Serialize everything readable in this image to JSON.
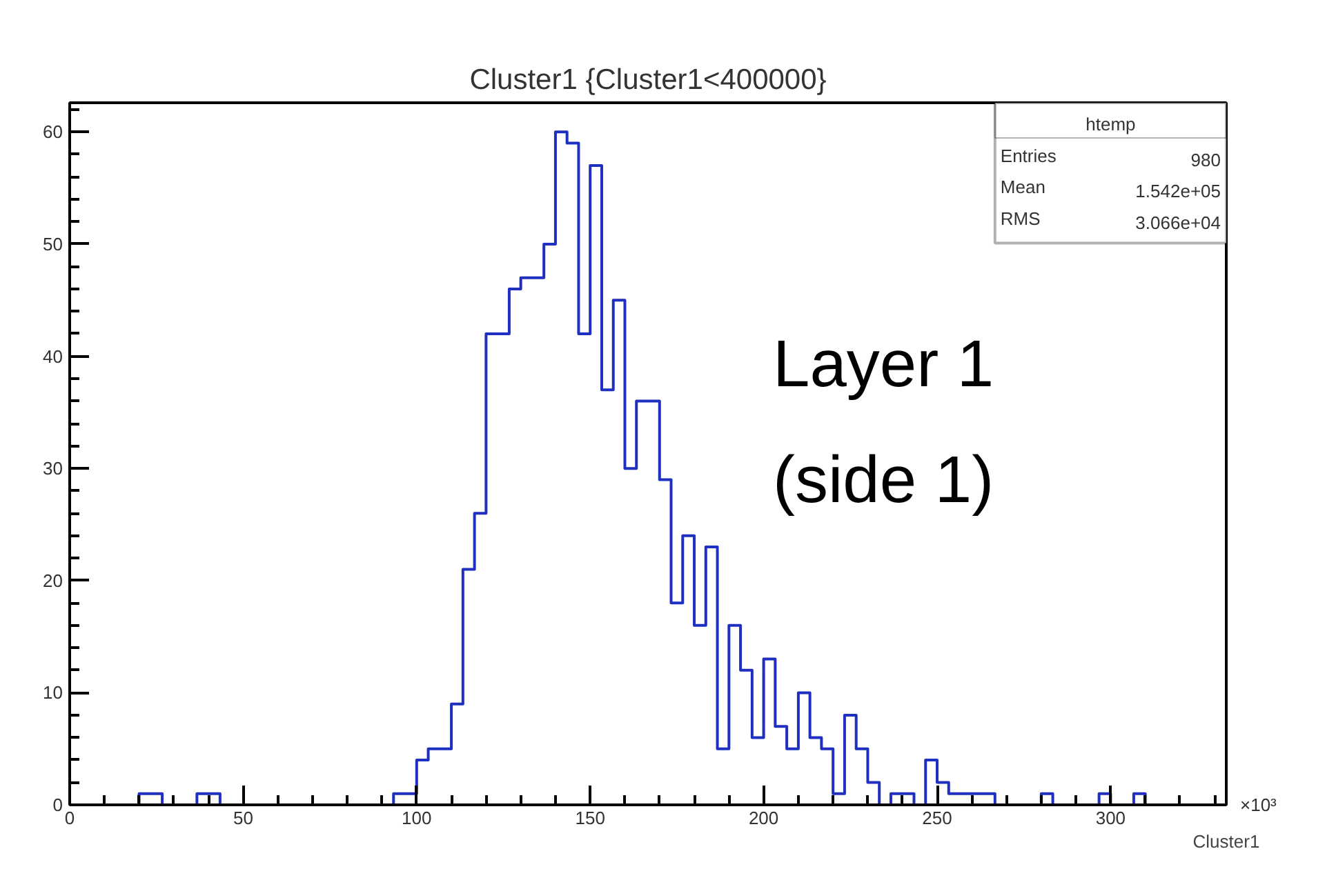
{
  "chart_data": {
    "type": "histogram",
    "title": "Cluster1 {Cluster1<400000}",
    "xlabel": "Cluster1",
    "bins": [
      0,
      3.333,
      6.667,
      10,
      13.333,
      16.667,
      20,
      23.333,
      26.667,
      30,
      33.333,
      36.667,
      40,
      43.333,
      46.667,
      50,
      53.333,
      56.667,
      60,
      63.333,
      66.667,
      70,
      73.333,
      76.667,
      80,
      83.333,
      86.667,
      90,
      93.333,
      96.667,
      100,
      103.333,
      106.667,
      110,
      113.333,
      116.667,
      120,
      123.333,
      126.667,
      130,
      133.333,
      136.667,
      140,
      143.333,
      146.667,
      150,
      153.333,
      156.667,
      160,
      163.333,
      166.667,
      170,
      173.333,
      176.667,
      180,
      183.333,
      186.667,
      190,
      193.333,
      196.667,
      200,
      203.333,
      206.667,
      210,
      213.333,
      216.667,
      220,
      223.333,
      226.667,
      230,
      233.333,
      236.667,
      240,
      243.333,
      246.667,
      250,
      253.333,
      256.667,
      260,
      263.333,
      266.667,
      270,
      273.333,
      276.667,
      280,
      283.333,
      286.667,
      290,
      293.333,
      296.667,
      300,
      303.333,
      306.667,
      310,
      313.333,
      316.667,
      320,
      323.333,
      326.667,
      330,
      333.333
    ],
    "values": [
      0,
      0,
      0,
      0,
      0,
      0,
      1,
      1,
      0,
      0,
      0,
      1,
      1,
      0,
      0,
      0,
      0,
      0,
      0,
      0,
      0,
      0,
      0,
      0,
      0,
      0,
      0,
      0,
      1,
      1,
      4,
      5,
      5,
      9,
      21,
      26,
      42,
      42,
      46,
      47,
      47,
      50,
      60,
      59,
      42,
      57,
      37,
      45,
      30,
      36,
      36,
      29,
      18,
      24,
      16,
      23,
      5,
      16,
      12,
      6,
      13,
      7,
      5,
      10,
      6,
      5,
      1,
      8,
      5,
      2,
      0,
      1,
      1,
      0,
      4,
      2,
      1,
      1,
      1,
      1,
      0,
      0,
      0,
      0,
      1,
      0,
      0,
      0,
      0,
      1,
      0,
      0,
      1,
      0,
      0,
      0,
      0,
      0,
      0,
      0
    ],
    "color": "#1f2fbf",
    "xlim": [
      0,
      333.333
    ],
    "ylim": [
      0,
      62.6
    ],
    "xticks": [
      0,
      50,
      100,
      150,
      200,
      250,
      300
    ],
    "yticks": [
      0,
      10,
      20,
      30,
      40,
      50,
      60
    ],
    "grid": false,
    "annotations": [
      "Layer 1",
      "(side 1)",
      "×10³",
      "htemp",
      "Entries",
      "980",
      "Mean",
      "1.542e+05",
      "RMS",
      "3.066e+04"
    ]
  }
}
